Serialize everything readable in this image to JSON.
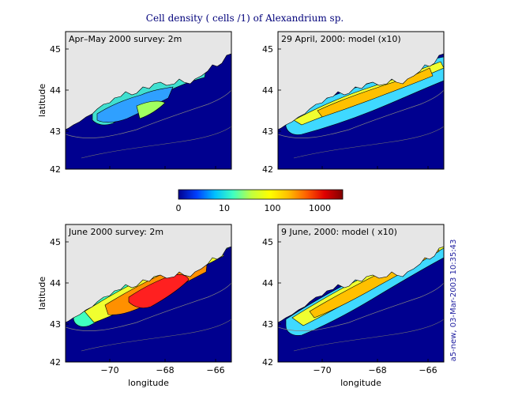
{
  "title": "Cell density ( cells /1) of Alexandrium sp.",
  "panels": [
    {
      "label": "Apr–May 2000 survey: 2m",
      "kind": "survey_early"
    },
    {
      "label": "29 April, 2000: model (x10)",
      "kind": "model_early"
    },
    {
      "label": "June 2000 survey: 2m",
      "kind": "survey_june"
    },
    {
      "label": "9 June, 2000: model ( x10)",
      "kind": "model_june"
    }
  ],
  "axes": {
    "ylabel": "latitude",
    "xlabel": "longitude",
    "yticks": [
      "45",
      "44",
      "43",
      "42"
    ],
    "xticks": [
      "−70",
      "−68",
      "−66"
    ]
  },
  "colorbar": {
    "ticks": [
      "0",
      "10",
      "100",
      "1000"
    ],
    "stops": [
      "#00008f",
      "#0040ff",
      "#00c0ff",
      "#40ffc0",
      "#c0ff40",
      "#ffff00",
      "#ffc000",
      "#ff6000",
      "#e00000",
      "#800000"
    ]
  },
  "stamp": "a5-new, 03-Mar-2003 10:35:43",
  "colors": {
    "land": "#e6e6e6",
    "ocean": "#00008f",
    "frame": "#000000",
    "title_text": "#00007a",
    "stamp_text": "#2020a0"
  }
}
